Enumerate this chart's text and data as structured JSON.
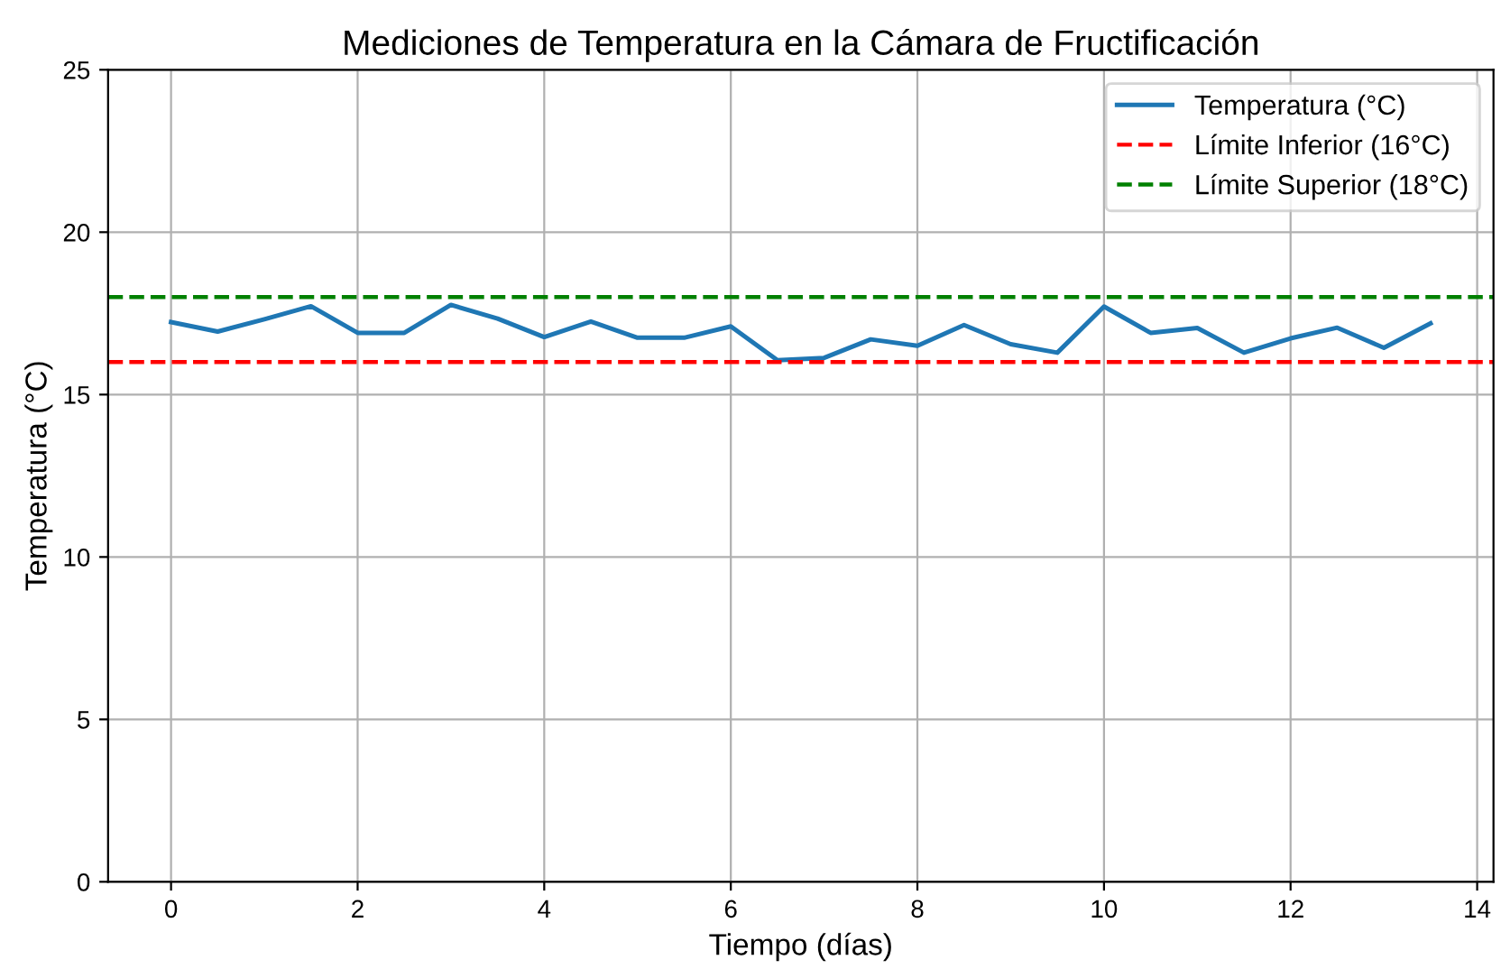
{
  "chart_data": {
    "type": "line",
    "title": "Mediciones de Temperatura en la Cámara de Fructificación",
    "xlabel": "Tiempo (días)",
    "ylabel": "Temperatura (°C)",
    "x": [
      0,
      0.5,
      1,
      1.5,
      2,
      2.5,
      3,
      3.5,
      4,
      4.5,
      5,
      5.5,
      6,
      6.5,
      7,
      7.5,
      8,
      8.5,
      9,
      9.5,
      10,
      10.5,
      11,
      11.5,
      12,
      12.5,
      13,
      13.5
    ],
    "series": [
      {
        "name": "Temperatura (°C)",
        "color": "#1f77b4",
        "values": [
          17.23,
          16.94,
          17.32,
          17.72,
          16.9,
          16.9,
          17.76,
          17.34,
          16.77,
          17.25,
          16.75,
          16.75,
          17.1,
          16.06,
          16.13,
          16.7,
          16.5,
          17.14,
          16.55,
          16.29,
          17.71,
          16.9,
          17.05,
          16.29,
          16.73,
          17.06,
          16.44,
          17.19
        ]
      }
    ],
    "ref_lines": [
      {
        "axis": "y",
        "value": 16,
        "label": "Límite Inferior (16°C)",
        "color": "#ff0000",
        "line_style": "dashed"
      },
      {
        "axis": "y",
        "value": 18,
        "label": "Límite Superior (18°C)",
        "color": "#008000",
        "line_style": "dashed"
      }
    ],
    "xlim": [
      -0.675,
      14.175
    ],
    "ylim": [
      0,
      25
    ],
    "xticks": [
      0,
      2,
      4,
      6,
      8,
      10,
      12,
      14
    ],
    "yticks": [
      0,
      5,
      10,
      15,
      20,
      25
    ],
    "grid": true,
    "legend": "top right",
    "line_style": "solid",
    "marker": "none"
  }
}
